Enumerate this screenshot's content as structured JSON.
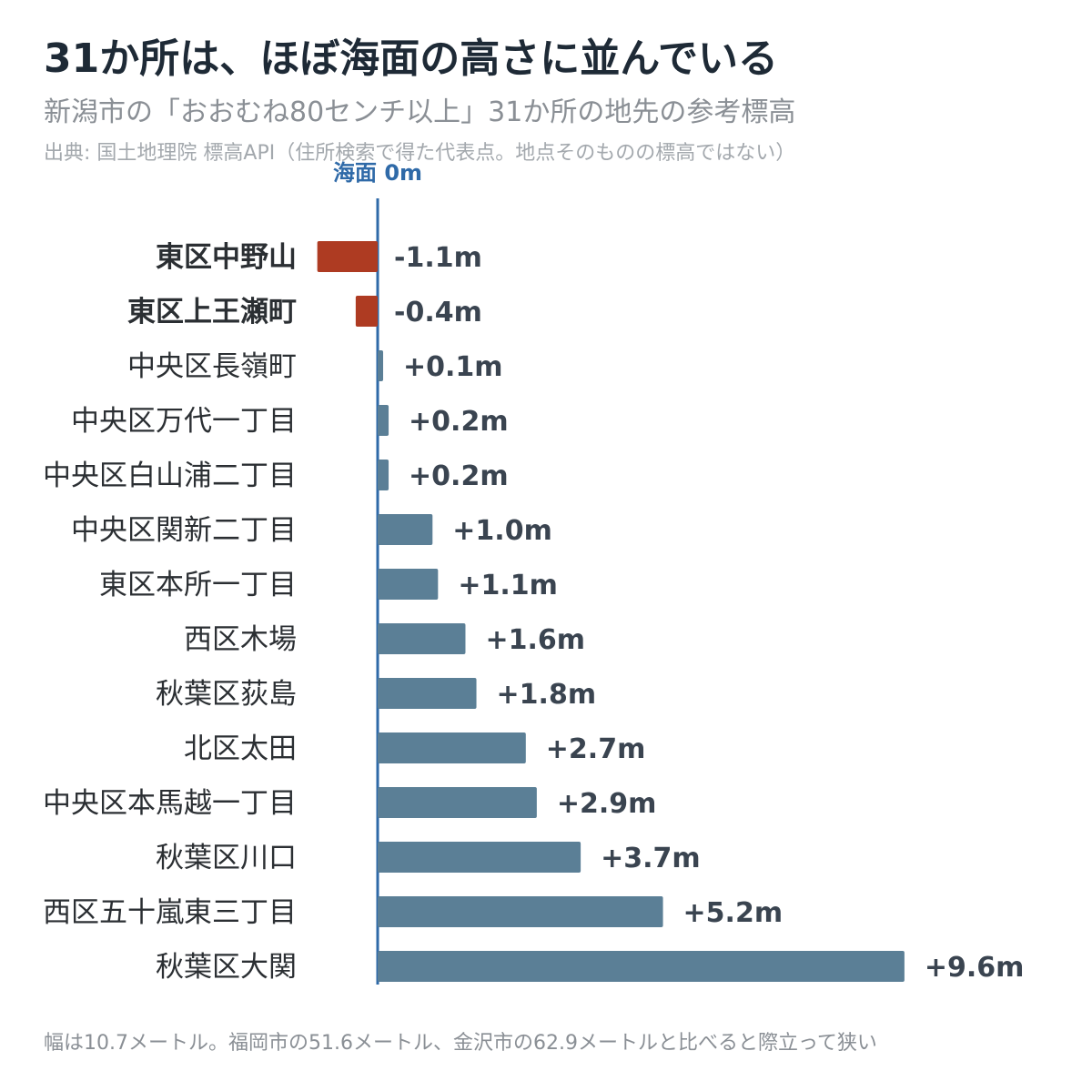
{
  "title": "31か所は、ほぼ海面の高さに並んでいる",
  "subtitle": "新潟市の「おおむね80センチ以上」31か所の地先の参考標高",
  "source": "出典: 国土地理院 標高API（住所検索で得た代表点。地点そのものの標高ではない）",
  "footnote": "幅は10.7メートル。福岡市の51.6メートル、金沢市の62.9メートルと比べると際立って狭い",
  "chart_data": {
    "type": "bar",
    "orientation": "horizontal",
    "zero_line_label": "海面 0m",
    "value_suffix": "m",
    "categories": [
      "東区中野山",
      "東区上王瀬町",
      "中央区長嶺町",
      "中央区万代一丁目",
      "中央区白山浦二丁目",
      "中央区関新二丁目",
      "東区本所一丁目",
      "西区木場",
      "秋葉区荻島",
      "北区太田",
      "中央区本馬越一丁目",
      "秋葉区川口",
      "西区五十嵐東三丁目",
      "秋葉区大関"
    ],
    "values": [
      -1.1,
      -0.4,
      0.1,
      0.2,
      0.2,
      1.0,
      1.1,
      1.6,
      1.8,
      2.7,
      2.9,
      3.7,
      5.2,
      9.6
    ],
    "value_labels": [
      "-1.1m",
      "-0.4m",
      "+0.1m",
      "+0.2m",
      "+0.2m",
      "+1.0m",
      "+1.1m",
      "+1.6m",
      "+1.8m",
      "+2.7m",
      "+2.9m",
      "+3.7m",
      "+5.2m",
      "+9.6m"
    ],
    "xlim": [
      -1.1,
      9.6
    ],
    "colors": {
      "negative": "#ae3b22",
      "positive": "#5b7f96",
      "zero_line": "#2f6aa8"
    }
  }
}
